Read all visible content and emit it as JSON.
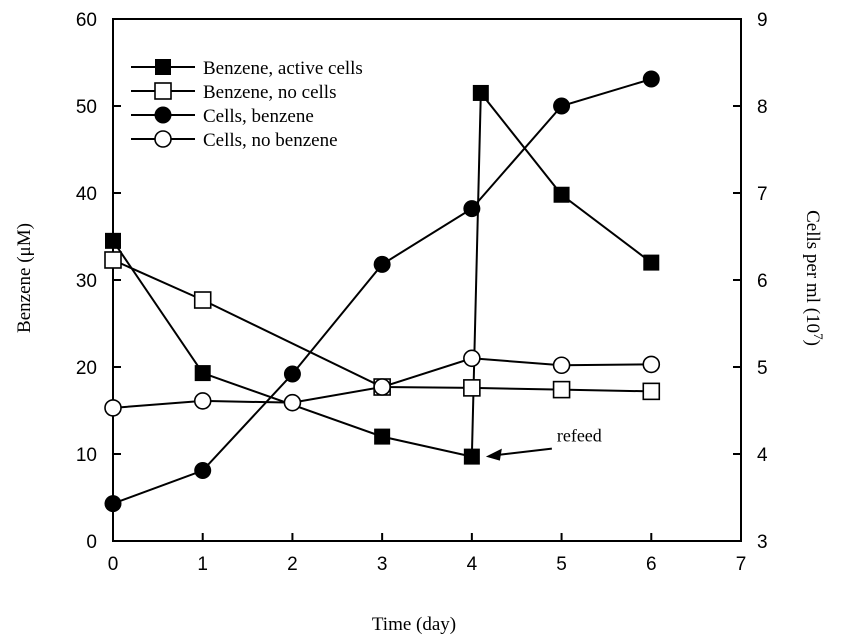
{
  "chart_data": {
    "type": "line",
    "title": "",
    "xlabel": "Time (day)",
    "ylabel_left": "Benzene (μM)",
    "ylabel_right_base": "Cells per ml (10",
    "ylabel_right_exp": "7",
    "ylabel_right_close": ")",
    "xlim": [
      0,
      7
    ],
    "ylim_left": [
      0,
      60
    ],
    "ylim_right": [
      3,
      9
    ],
    "x_ticks": [
      "0",
      "1",
      "2",
      "3",
      "4",
      "5",
      "6",
      "7"
    ],
    "y_ticks_left": [
      "0",
      "10",
      "20",
      "30",
      "40",
      "50",
      "60"
    ],
    "y_ticks_right": [
      "3",
      "4",
      "5",
      "6",
      "7",
      "8",
      "9"
    ],
    "grid": false,
    "legend_position": "top-left",
    "series": [
      {
        "name": "Benzene, active cells",
        "axis": "left",
        "marker": "filled-square",
        "points": [
          [
            0,
            34.5
          ],
          [
            1,
            19.3
          ],
          [
            3,
            12.0
          ],
          [
            4,
            9.7
          ],
          [
            4.1,
            51.5
          ],
          [
            5,
            39.8
          ],
          [
            6,
            32.0
          ]
        ]
      },
      {
        "name": "Benzene, no cells",
        "axis": "left",
        "marker": "open-square",
        "points": [
          [
            0,
            32.3
          ],
          [
            1,
            27.7
          ],
          [
            3,
            17.7
          ],
          [
            4,
            17.6
          ],
          [
            5,
            17.4
          ],
          [
            6,
            17.2
          ]
        ]
      },
      {
        "name": "Cells, benzene",
        "axis": "right",
        "marker": "filled-circle",
        "points": [
          [
            0,
            3.43
          ],
          [
            1,
            3.81
          ],
          [
            2,
            4.92
          ],
          [
            3,
            6.18
          ],
          [
            4,
            6.82
          ],
          [
            5,
            8.0
          ],
          [
            6,
            8.31
          ]
        ]
      },
      {
        "name": "Cells, no benzene",
        "axis": "right",
        "marker": "open-circle",
        "points": [
          [
            0,
            4.53
          ],
          [
            1,
            4.61
          ],
          [
            2,
            4.59
          ],
          [
            3,
            4.77
          ],
          [
            4,
            5.1
          ],
          [
            5,
            5.02
          ],
          [
            6,
            5.03
          ]
        ]
      }
    ],
    "annotations": [
      {
        "text": "refeed",
        "target": [
          4,
          9.7
        ]
      }
    ]
  }
}
